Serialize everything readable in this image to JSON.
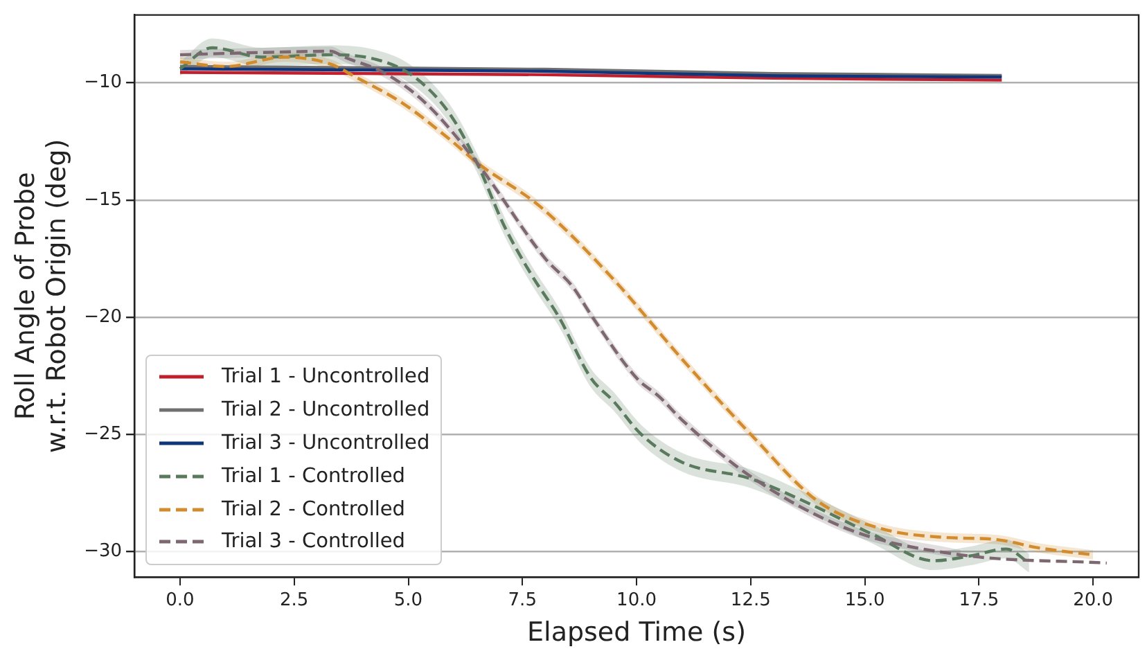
{
  "chart_data": {
    "type": "line",
    "xlabel": "Elapsed Time (s)",
    "ylabel": "Roll Angle of Probe\nw.r.t. Robot Origin (deg)",
    "xlim": [
      -1.0,
      21.0
    ],
    "ylim": [
      -31.1,
      -7.1
    ],
    "xticks": [
      {
        "value": 0,
        "label": "0.0"
      },
      {
        "value": 2.5,
        "label": "2.5"
      },
      {
        "value": 5,
        "label": "5.0"
      },
      {
        "value": 7.5,
        "label": "7.5"
      },
      {
        "value": 10,
        "label": "10.0"
      },
      {
        "value": 12.5,
        "label": "12.5"
      },
      {
        "value": 15,
        "label": "15.0"
      },
      {
        "value": 17.5,
        "label": "17.5"
      },
      {
        "value": 20,
        "label": "20.0"
      }
    ],
    "yticks": [
      {
        "value": -30,
        "label": "−30"
      },
      {
        "value": -25,
        "label": "−25"
      },
      {
        "value": -20,
        "label": "−20"
      },
      {
        "value": -15,
        "label": "−15"
      },
      {
        "value": -10,
        "label": "−10"
      }
    ],
    "grid": "y",
    "legend": "bottom left",
    "marker": "none",
    "series": [
      {
        "name": "Trial 1 - Uncontrolled",
        "color": "#c0202e",
        "line_style": "solid",
        "x": [
          0,
          4,
          8,
          13,
          18
        ],
        "values": [
          -9.55,
          -9.6,
          -9.65,
          -9.8,
          -9.88
        ]
      },
      {
        "name": "Trial 2 - Uncontrolled",
        "color": "#707070",
        "line_style": "solid",
        "x": [
          0,
          4,
          8,
          13,
          18
        ],
        "values": [
          -9.3,
          -9.35,
          -9.42,
          -9.6,
          -9.68
        ]
      },
      {
        "name": "Trial 3 - Uncontrolled",
        "color": "#10357a",
        "line_style": "solid",
        "x": [
          0,
          4,
          7.9,
          13.1,
          18
        ],
        "values": [
          -9.4,
          -9.45,
          -9.5,
          -9.7,
          -9.75
        ]
      },
      {
        "name": "Trial 1 - Controlled",
        "color": "#5a7a5e",
        "line_style": "dashed",
        "x": [
          0,
          0.7,
          1.8,
          3.3,
          4.3,
          5.1,
          5.9,
          6.5,
          7.1,
          7.7,
          8.3,
          9.0,
          9.5,
          10.1,
          11.0,
          12.5,
          13.6,
          15.2,
          16.5,
          17.3,
          18.1,
          18.6
        ],
        "values": [
          -9.4,
          -8.5,
          -8.9,
          -8.8,
          -9.0,
          -9.7,
          -11.3,
          -13.4,
          -16.1,
          -18.2,
          -20.0,
          -22.6,
          -23.6,
          -25.0,
          -26.2,
          -26.9,
          -27.8,
          -29.3,
          -30.4,
          -30.2,
          -29.9,
          -30.5
        ],
        "lower": [
          -9.7,
          -8.9,
          -9.3,
          -9.2,
          -9.4,
          -10.1,
          -11.7,
          -13.8,
          -16.5,
          -18.6,
          -20.4,
          -23.0,
          -24.0,
          -25.4,
          -26.6,
          -27.3,
          -28.2,
          -29.7,
          -30.8,
          -30.6,
          -30.3,
          -30.9
        ],
        "upper": [
          -9.1,
          -8.1,
          -8.5,
          -8.4,
          -8.6,
          -9.3,
          -10.9,
          -13.0,
          -15.7,
          -17.8,
          -19.6,
          -22.2,
          -23.2,
          -24.6,
          -25.8,
          -26.5,
          -27.4,
          -28.9,
          -30.0,
          -29.8,
          -29.5,
          -30.1
        ]
      },
      {
        "name": "Trial 2 - Controlled",
        "color": "#d28c2e",
        "line_style": "dashed",
        "x": [
          0,
          1.0,
          2.3,
          3.3,
          3.8,
          4.9,
          5.9,
          6.5,
          7.9,
          9.5,
          11.0,
          12.5,
          14.0,
          15.4,
          16.7,
          17.9,
          18.8,
          20.0
        ],
        "values": [
          -9.1,
          -9.3,
          -8.9,
          -9.2,
          -9.7,
          -10.9,
          -12.4,
          -13.4,
          -15.3,
          -18.4,
          -21.8,
          -25.0,
          -27.9,
          -29.05,
          -29.4,
          -29.5,
          -29.85,
          -30.15
        ],
        "lower": [
          -9.3,
          -9.5,
          -9.1,
          -9.4,
          -9.9,
          -11.1,
          -12.6,
          -13.6,
          -15.5,
          -18.6,
          -22.0,
          -25.2,
          -28.1,
          -29.25,
          -29.6,
          -29.7,
          -30.05,
          -30.35
        ],
        "upper": [
          -8.9,
          -9.1,
          -8.7,
          -9.0,
          -9.5,
          -10.7,
          -12.2,
          -13.2,
          -15.1,
          -18.2,
          -21.6,
          -24.8,
          -27.7,
          -28.85,
          -29.2,
          -29.3,
          -29.65,
          -29.95
        ]
      },
      {
        "name": "Trial 3 - Controlled",
        "color": "#7d6770",
        "line_style": "dashed",
        "x": [
          0,
          1.8,
          3.3,
          3.6,
          4.5,
          5.4,
          6.5,
          8.0,
          8.6,
          9.0,
          10.0,
          10.5,
          11.0,
          12.5,
          14.7,
          17.1,
          20.3
        ],
        "values": [
          -8.8,
          -8.7,
          -8.65,
          -8.9,
          -9.6,
          -10.9,
          -13.4,
          -17.5,
          -18.7,
          -19.9,
          -22.6,
          -23.4,
          -24.4,
          -26.8,
          -29.1,
          -30.15,
          -30.5
        ],
        "lower": [
          -9.0,
          -8.9,
          -8.85,
          -9.1,
          -9.8,
          -11.1,
          -13.6,
          -17.7,
          -18.9,
          -20.1,
          -22.8,
          -23.6,
          -24.6,
          -27.0,
          -29.3,
          -30.35,
          null
        ],
        "upper": [
          -8.6,
          -8.5,
          -8.45,
          -8.7,
          -9.4,
          -10.7,
          -13.2,
          -17.3,
          -18.5,
          -19.7,
          -22.4,
          -23.2,
          -24.2,
          -26.6,
          -28.9,
          -29.95,
          null
        ]
      }
    ]
  }
}
